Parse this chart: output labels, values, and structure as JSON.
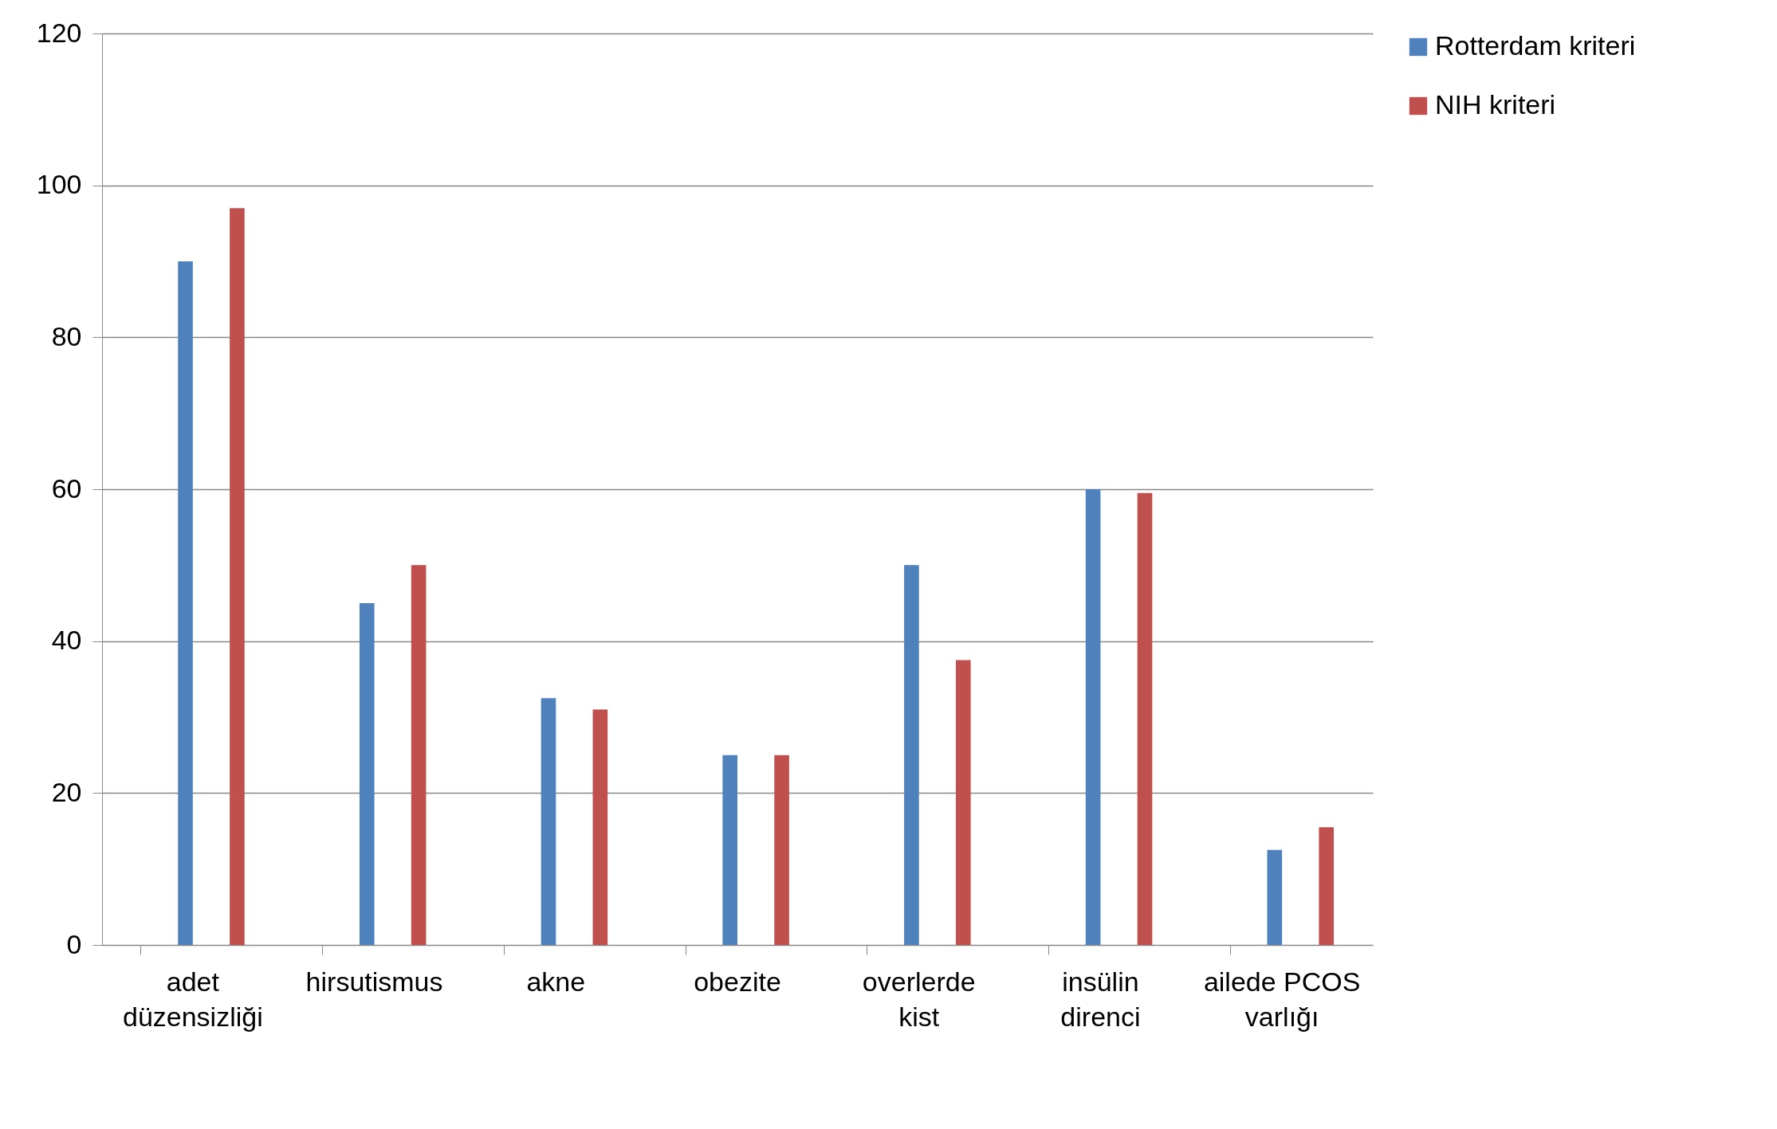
{
  "chart_data": {
    "type": "bar",
    "categories": [
      "adet düzensizliği",
      "hirsutismus",
      "akne",
      "obezite",
      "overlerde kist",
      "insülin direnci",
      "ailede PCOS varlığı"
    ],
    "series": [
      {
        "name": "Rotterdam kriteri",
        "color": "#4f81bd",
        "values": [
          90,
          45,
          32.5,
          25,
          50,
          60,
          12.5
        ]
      },
      {
        "name": "NIH kriteri",
        "color": "#c0504d",
        "values": [
          97,
          50,
          31,
          25,
          37.5,
          59.5,
          15.5
        ]
      }
    ],
    "ylim": [
      0,
      120
    ],
    "yticks": [
      0,
      20,
      40,
      60,
      80,
      100,
      120
    ],
    "grid": "y",
    "legend": "right"
  }
}
